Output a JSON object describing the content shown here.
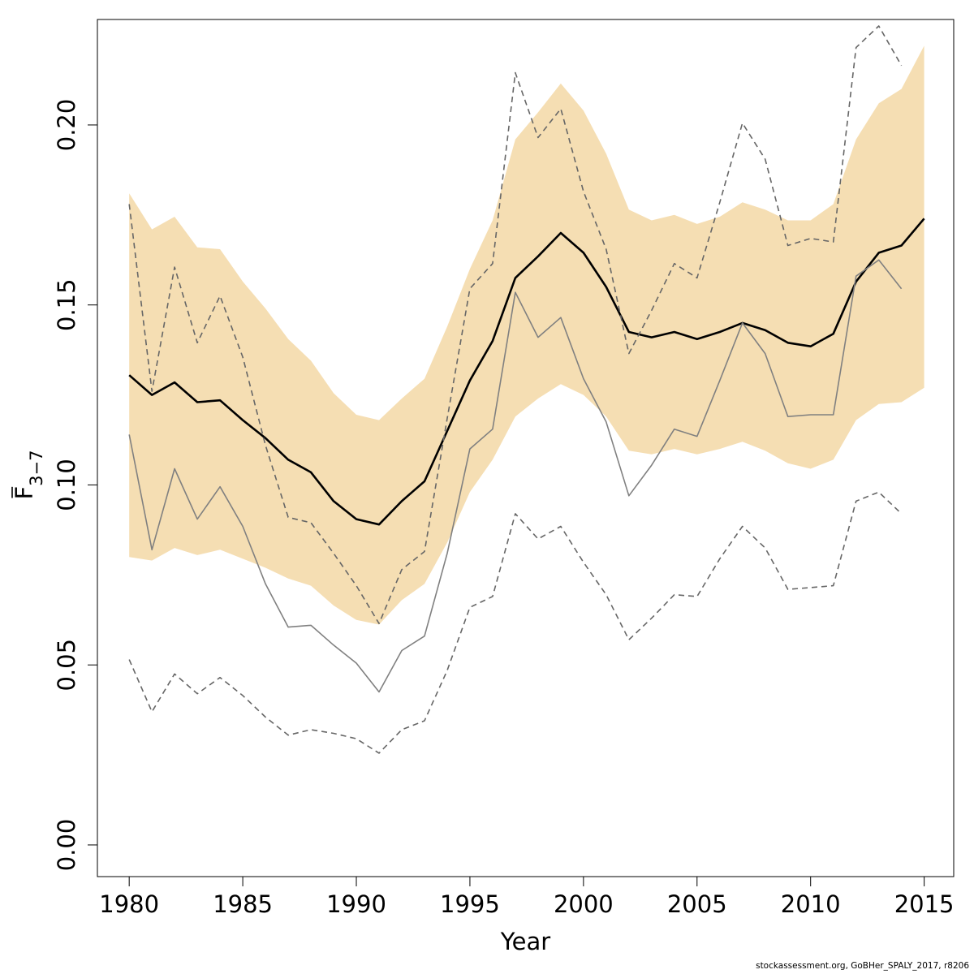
{
  "chart_data": {
    "type": "line",
    "xlabel": "Year",
    "ylabel": "F",
    "ylabel_subscript": "3−7",
    "xlim": [
      1978.6,
      2016.3
    ],
    "ylim": [
      -0.0088,
      0.2293
    ],
    "x_ticks": [
      "1980",
      "1985",
      "1990",
      "1995",
      "2000",
      "2005",
      "2010",
      "2015"
    ],
    "y_ticks": [
      "0.00",
      "0.05",
      "0.10",
      "0.15",
      "0.20"
    ],
    "band": {
      "x": [
        1980,
        1981,
        1982,
        1983,
        1984,
        1985,
        1986,
        1987,
        1988,
        1989,
        1990,
        1991,
        1992,
        1993,
        1994,
        1995,
        1996,
        1997,
        1998,
        1999,
        2000,
        2001,
        2002,
        2003,
        2004,
        2005,
        2006,
        2007,
        2008,
        2009,
        2010,
        2011,
        2012,
        2013,
        2014,
        2015
      ],
      "upper": [
        0.181,
        0.171,
        0.1745,
        0.166,
        0.1655,
        0.1565,
        0.149,
        0.1405,
        0.1345,
        0.1255,
        0.1195,
        0.118,
        0.124,
        0.1295,
        0.144,
        0.16,
        0.1735,
        0.196,
        0.2035,
        0.2115,
        0.204,
        0.192,
        0.1765,
        0.1735,
        0.175,
        0.1725,
        0.1745,
        0.1785,
        0.1765,
        0.1735,
        0.1735,
        0.178,
        0.196,
        0.206,
        0.21,
        0.222
      ],
      "lower": [
        0.08,
        0.079,
        0.0825,
        0.0805,
        0.082,
        0.0795,
        0.077,
        0.074,
        0.072,
        0.0665,
        0.0625,
        0.0612,
        0.068,
        0.0725,
        0.084,
        0.098,
        0.107,
        0.119,
        0.124,
        0.128,
        0.125,
        0.119,
        0.1095,
        0.1085,
        0.11,
        0.1085,
        0.11,
        0.112,
        0.1095,
        0.106,
        0.1045,
        0.107,
        0.118,
        0.1225,
        0.123,
        0.127
      ],
      "color": "#F5DEB3"
    },
    "series": [
      {
        "role": "estimate",
        "style": "solid",
        "color": "#000000",
        "x": [
          1980,
          1981,
          1982,
          1983,
          1984,
          1985,
          1986,
          1987,
          1988,
          1989,
          1990,
          1991,
          1992,
          1993,
          1994,
          1995,
          1996,
          1997,
          1998,
          1999,
          2000,
          2001,
          2002,
          2003,
          2004,
          2005,
          2006,
          2007,
          2008,
          2009,
          2010,
          2011,
          2012,
          2013,
          2014,
          2015
        ],
        "values": [
          0.1305,
          0.125,
          0.1285,
          0.123,
          0.1235,
          0.118,
          0.113,
          0.107,
          0.1035,
          0.0955,
          0.0905,
          0.089,
          0.0955,
          0.101,
          0.115,
          0.129,
          0.14,
          0.1575,
          0.1635,
          0.17,
          0.1645,
          0.155,
          0.1425,
          0.141,
          0.1425,
          0.1405,
          0.1425,
          0.145,
          0.143,
          0.1395,
          0.1385,
          0.142,
          0.1565,
          0.1645,
          0.1665,
          0.174
        ]
      },
      {
        "role": "retrospective",
        "style": "solid",
        "color": "#808080",
        "x": [
          1980,
          1981,
          1982,
          1983,
          1984,
          1985,
          1986,
          1987,
          1988,
          1989,
          1990,
          1991,
          1992,
          1993,
          1994,
          1995,
          1996,
          1997,
          1998,
          1999,
          2000,
          2001,
          2002,
          2003,
          2004,
          2005,
          2006,
          2007,
          2008,
          2009,
          2010,
          2011,
          2012,
          2013,
          2014
        ],
        "values": [
          0.114,
          0.082,
          0.1045,
          0.0905,
          0.0995,
          0.0885,
          0.0725,
          0.0605,
          0.061,
          0.0555,
          0.0505,
          0.0425,
          0.054,
          0.058,
          0.081,
          0.11,
          0.1155,
          0.1535,
          0.141,
          0.1465,
          0.1295,
          0.1175,
          0.097,
          0.1055,
          0.1155,
          0.1135,
          0.129,
          0.145,
          0.1365,
          0.119,
          0.1195,
          0.1195,
          0.158,
          0.1625,
          0.1545
        ]
      },
      {
        "role": "retrospective-upper",
        "style": "dashed",
        "color": "#666666",
        "x": [
          1980,
          1981,
          1982,
          1983,
          1984,
          1985,
          1986,
          1987,
          1988,
          1989,
          1990,
          1991,
          1992,
          1993,
          1994,
          1995,
          1996,
          1997,
          1998,
          1999,
          2000,
          2001,
          2002,
          2003,
          2004,
          2005,
          2006,
          2007,
          2008,
          2009,
          2010,
          2011,
          2012,
          2013,
          2014
        ],
        "values": [
          0.178,
          0.126,
          0.1605,
          0.1395,
          0.1525,
          0.1355,
          0.111,
          0.091,
          0.0895,
          0.081,
          0.072,
          0.0615,
          0.0765,
          0.0815,
          0.1185,
          0.1545,
          0.1615,
          0.2145,
          0.1965,
          0.2045,
          0.1815,
          0.1655,
          0.1365,
          0.1485,
          0.1615,
          0.1575,
          0.1785,
          0.2005,
          0.1905,
          0.1665,
          0.1685,
          0.1675,
          0.2215,
          0.2275,
          0.2165
        ]
      },
      {
        "role": "retrospective-lower",
        "style": "dashed",
        "color": "#666666",
        "x": [
          1980,
          1981,
          1982,
          1983,
          1984,
          1985,
          1986,
          1987,
          1988,
          1989,
          1990,
          1991,
          1992,
          1993,
          1994,
          1995,
          1996,
          1997,
          1998,
          1999,
          2000,
          2001,
          2002,
          2003,
          2004,
          2005,
          2006,
          2007,
          2008,
          2009,
          2010,
          2011,
          2012,
          2013,
          2014
        ],
        "values": [
          0.0515,
          0.037,
          0.0475,
          0.042,
          0.0465,
          0.0415,
          0.0355,
          0.0305,
          0.032,
          0.031,
          0.0295,
          0.0255,
          0.032,
          0.0345,
          0.0485,
          0.066,
          0.069,
          0.092,
          0.085,
          0.0885,
          0.0785,
          0.0695,
          0.057,
          0.063,
          0.0695,
          0.069,
          0.0795,
          0.0885,
          0.0825,
          0.071,
          0.0715,
          0.072,
          0.0955,
          0.098,
          0.092
        ]
      }
    ],
    "grid": false,
    "legend": "none"
  },
  "footer": {
    "credit": "stockassessment.org, GoBHer_SPALY_2017, r8206"
  }
}
